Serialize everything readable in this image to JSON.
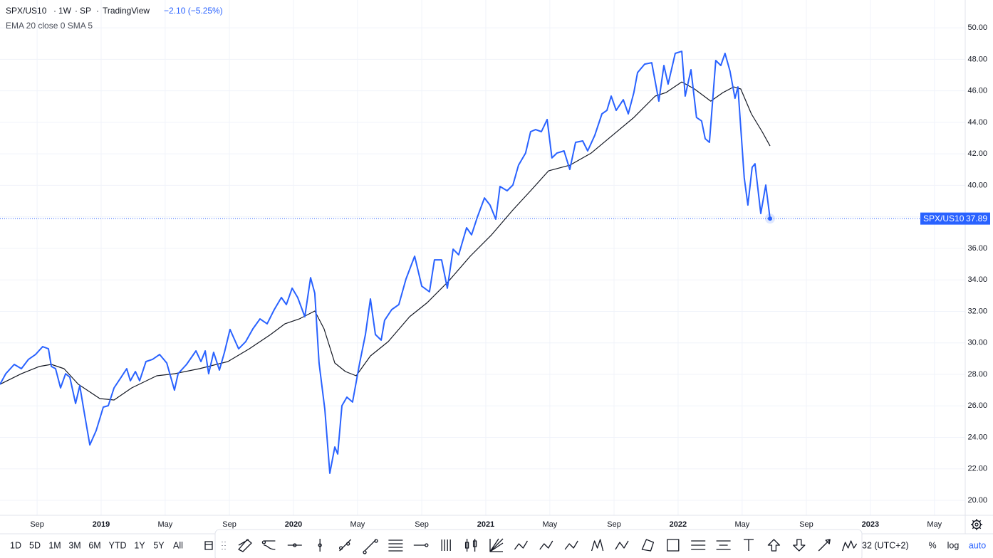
{
  "chart_data": {
    "type": "line",
    "title": "SPX/US10",
    "interval": "1W",
    "exchange": "SP",
    "source": "TradingView",
    "change": "−2.10 (−5.25%)",
    "xlim": [
      2018.474,
      2023.493
    ],
    "xticks": [
      {
        "value": 2018.667,
        "label": "Sep"
      },
      2019,
      {
        "value": 2019.333,
        "label": "May"
      },
      {
        "value": 2019.667,
        "label": "Sep"
      },
      2020,
      {
        "value": 2020.333,
        "label": "May"
      },
      {
        "value": 2020.667,
        "label": "Sep"
      },
      2021,
      {
        "value": 2021.333,
        "label": "May"
      },
      {
        "value": 2021.667,
        "label": "Sep"
      },
      2022,
      {
        "value": 2022.333,
        "label": "May"
      },
      {
        "value": 2022.667,
        "label": "Sep"
      },
      2023,
      {
        "value": 2023.333,
        "label": "May"
      }
    ],
    "ylim": [
      19.05,
      51.77
    ],
    "yticks": [
      {
        "value": 20,
        "label": "20.00"
      },
      {
        "value": 22,
        "label": "22.00"
      },
      {
        "value": 24,
        "label": "24.00"
      },
      {
        "value": 26,
        "label": "26.00"
      },
      {
        "value": 28,
        "label": "28.00"
      },
      {
        "value": 30,
        "label": "30.00"
      },
      {
        "value": 32,
        "label": "32.00"
      },
      {
        "value": 34,
        "label": "34.00"
      },
      {
        "value": 36,
        "label": "36.00"
      },
      {
        "value": 38,
        "label": "38.00"
      },
      {
        "value": 40,
        "label": "40.00"
      },
      {
        "value": 42,
        "label": "42.00"
      },
      {
        "value": 44,
        "label": "44.00"
      },
      {
        "value": 46,
        "label": "46.00"
      },
      {
        "value": 48,
        "label": "48.00"
      },
      {
        "value": 50,
        "label": "50.00"
      }
    ],
    "grid": true,
    "log_scale": false,
    "last_value": 37.89,
    "series": [
      {
        "name": "SPX/US10",
        "color": "#2962ff",
        "x": [
          2018.474,
          2018.504,
          2018.548,
          2018.585,
          2018.622,
          2018.659,
          2018.696,
          2018.726,
          2018.741,
          2018.763,
          2018.789,
          2018.815,
          2018.837,
          2018.867,
          2018.889,
          2018.911,
          2018.941,
          2018.974,
          2019.011,
          2019.037,
          2019.067,
          2019.104,
          2019.133,
          2019.152,
          2019.178,
          2019.2,
          2019.233,
          2019.267,
          2019.304,
          2019.341,
          2019.381,
          2019.4,
          2019.444,
          2019.493,
          2019.519,
          2019.541,
          2019.559,
          2019.585,
          2019.615,
          2019.641,
          2019.67,
          2019.715,
          2019.752,
          2019.789,
          2019.826,
          2019.863,
          2019.9,
          2019.937,
          2019.963,
          2019.993,
          2020.022,
          2020.059,
          2020.089,
          2020.111,
          2020.133,
          2020.163,
          2020.189,
          2020.215,
          2020.23,
          2020.252,
          2020.278,
          2020.307,
          2020.344,
          2020.374,
          2020.4,
          2020.426,
          2020.456,
          2020.474,
          2020.511,
          2020.548,
          2020.585,
          2020.63,
          2020.667,
          2020.707,
          2020.733,
          2020.77,
          2020.8,
          2020.83,
          2020.859,
          2020.9,
          2020.926,
          2020.956,
          2020.993,
          2021.022,
          2021.052,
          2021.074,
          2021.111,
          2021.141,
          2021.17,
          2021.207,
          2021.233,
          2021.259,
          2021.289,
          2021.319,
          2021.344,
          2021.37,
          2021.407,
          2021.437,
          2021.467,
          2021.504,
          2021.53,
          2021.567,
          2021.604,
          2021.63,
          2021.652,
          2021.678,
          2021.715,
          2021.741,
          2021.77,
          2021.789,
          2021.826,
          2021.863,
          2021.9,
          2021.926,
          2021.948,
          2021.985,
          2022.019,
          2022.037,
          2022.067,
          2022.096,
          2022.122,
          2022.141,
          2022.163,
          2022.196,
          2022.222,
          2022.244,
          2022.27,
          2022.296,
          2022.311,
          2022.344,
          2022.363,
          2022.385,
          2022.4,
          2022.43,
          2022.456,
          2022.478
        ],
        "values": [
          27.37,
          28.04,
          28.63,
          28.36,
          28.95,
          29.26,
          29.76,
          29.62,
          28.5,
          28.36,
          27.14,
          28.04,
          27.82,
          26.15,
          27.28,
          25.65,
          23.52,
          24.43,
          25.92,
          26.01,
          27.14,
          27.82,
          28.36,
          27.59,
          28.18,
          27.59,
          28.81,
          28.95,
          29.26,
          28.72,
          27.0,
          28.04,
          28.63,
          29.49,
          28.81,
          29.49,
          28.04,
          29.4,
          28.27,
          29.4,
          30.85,
          29.62,
          30.08,
          30.89,
          31.52,
          31.21,
          32.11,
          32.88,
          32.43,
          33.47,
          32.88,
          31.66,
          34.14,
          33.15,
          28.72,
          25.78,
          21.72,
          23.39,
          22.94,
          26.01,
          26.55,
          26.24,
          28.72,
          30.53,
          32.79,
          30.53,
          30.17,
          31.43,
          32.11,
          32.43,
          34.05,
          35.5,
          33.6,
          33.24,
          35.27,
          35.27,
          33.47,
          35.95,
          35.59,
          37.31,
          36.86,
          37.98,
          39.2,
          38.75,
          37.85,
          39.93,
          39.66,
          40.02,
          41.28,
          42.05,
          43.41,
          43.54,
          43.41,
          44.18,
          41.74,
          42.05,
          42.19,
          41.01,
          42.73,
          42.82,
          42.19,
          43.18,
          44.54,
          44.76,
          45.67,
          44.76,
          45.44,
          44.54,
          45.89,
          47.16,
          47.7,
          47.79,
          45.35,
          47.61,
          46.43,
          48.38,
          48.51,
          45.67,
          47.34,
          44.31,
          44.09,
          42.96,
          42.73,
          47.93,
          47.61,
          48.38,
          47.25,
          45.53,
          46.25,
          40.47,
          38.75,
          41.15,
          41.37,
          38.21,
          40.02,
          37.89
        ]
      },
      {
        "name": "EMA 20 close 0 SMA 5",
        "color": "#131722",
        "x": [
          2018.474,
          2018.585,
          2018.678,
          2018.741,
          2018.807,
          2018.881,
          2018.993,
          2019.067,
          2019.159,
          2019.289,
          2019.381,
          2019.511,
          2019.659,
          2019.77,
          2019.881,
          2019.956,
          2020.03,
          2020.111,
          2020.159,
          2020.215,
          2020.27,
          2020.326,
          2020.4,
          2020.493,
          2020.604,
          2020.696,
          2020.807,
          2020.919,
          2021.03,
          2021.141,
          2021.233,
          2021.326,
          2021.437,
          2021.548,
          2021.659,
          2021.77,
          2021.881,
          2021.937,
          2022.019,
          2022.085,
          2022.17,
          2022.233,
          2022.289,
          2022.326,
          2022.381,
          2022.437,
          2022.478
        ],
        "values": [
          27.37,
          28.04,
          28.5,
          28.63,
          28.36,
          27.37,
          26.46,
          26.37,
          27.14,
          27.91,
          28.04,
          28.36,
          28.81,
          29.62,
          30.53,
          31.21,
          31.52,
          32.02,
          30.89,
          28.72,
          28.18,
          27.91,
          29.17,
          30.08,
          31.66,
          32.56,
          33.92,
          35.5,
          36.86,
          38.44,
          39.66,
          40.92,
          41.28,
          42.05,
          43.18,
          44.31,
          45.67,
          45.89,
          46.57,
          46.12,
          45.35,
          45.89,
          46.25,
          46.12,
          44.54,
          43.41,
          42.5
        ]
      }
    ]
  },
  "ui": {
    "ranges": [
      "1D",
      "5D",
      "1M",
      "3M",
      "6M",
      "YTD",
      "1Y",
      "5Y",
      "All"
    ],
    "timezone": "32 (UTC+2)",
    "scale_buttons": [
      "%",
      "log",
      "auto"
    ]
  }
}
